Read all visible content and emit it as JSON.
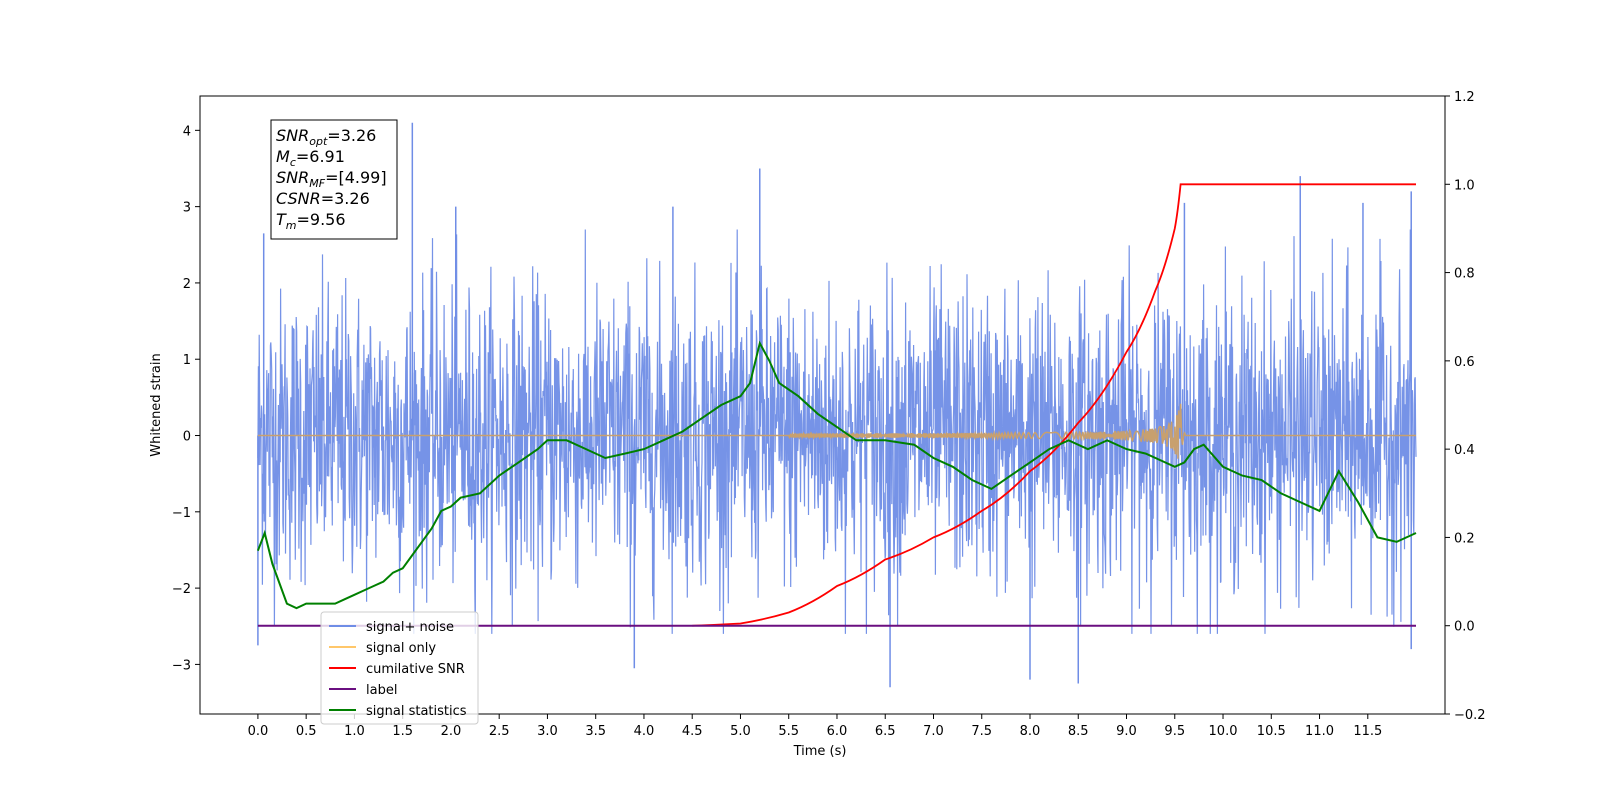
{
  "chart_data": {
    "type": "line",
    "xlabel": "Time (s)",
    "ylabel": "Whitened strain",
    "xlim": [
      -0.6,
      12.3
    ],
    "ylim": [
      -3.65,
      4.45
    ],
    "ylim_right": [
      -0.2,
      1.2
    ],
    "x_ticks": [
      "0.0",
      "0.5",
      "1.0",
      "1.5",
      "2.0",
      "2.5",
      "3.0",
      "3.5",
      "4.0",
      "4.5",
      "5.0",
      "5.5",
      "6.0",
      "6.5",
      "7.0",
      "7.5",
      "8.0",
      "8.5",
      "9.0",
      "9.5",
      "10.0",
      "10.5",
      "11.0",
      "11.5"
    ],
    "y_ticks": [
      "4",
      "3",
      "2",
      "1",
      "0",
      "−1",
      "−2",
      "−3"
    ],
    "y_ticks_right": [
      "1.2",
      "1.0",
      "0.8",
      "0.6",
      "0.4",
      "0.2",
      "0.0",
      "−0.2"
    ],
    "grid": false,
    "legend_position": "lower-left",
    "annotation": [
      {
        "main": "SNR",
        "sub": "opt",
        "value": "=3.26"
      },
      {
        "main": "M",
        "sub": "c",
        "value": "=6.91"
      },
      {
        "main": "SNR",
        "sub": "MF",
        "value": "=[4.99]"
      },
      {
        "main": "CSNR",
        "sub": "",
        "value": "=3.26"
      },
      {
        "main": "T",
        "sub": "m",
        "value": "=9.56"
      }
    ],
    "series": [
      {
        "name": "signal+ noise",
        "color": "#6f8de6",
        "axis": "left",
        "x_range": [
          0.0,
          12.0
        ],
        "envelope_upper_approx": [
          2.1,
          2.6
        ],
        "envelope_lower_approx": [
          -2.3,
          -2.0
        ],
        "peaks": [
          {
            "x": 1.6,
            "y": 4.1
          },
          {
            "x": 0.06,
            "y": 2.65
          },
          {
            "x": 5.2,
            "y": 3.5
          },
          {
            "x": 10.8,
            "y": 3.4
          },
          {
            "x": 11.95,
            "y": 3.2
          },
          {
            "x": 6.55,
            "y": -3.3
          },
          {
            "x": 8.5,
            "y": -3.25
          },
          {
            "x": 3.9,
            "y": -3.05
          },
          {
            "x": 8.0,
            "y": -3.2
          },
          {
            "x": 2.05,
            "y": 3.0
          },
          {
            "x": 4.3,
            "y": 3.0
          },
          {
            "x": 9.6,
            "y": 3.05
          },
          {
            "x": 11.45,
            "y": 3.05
          },
          {
            "x": 0.0,
            "y": -2.75
          },
          {
            "x": 11.95,
            "y": -2.8
          }
        ]
      },
      {
        "name": "signal only",
        "color": "#c8a06e",
        "axis": "left",
        "chirp_start": 5.5,
        "merger_time": 9.56,
        "amplitude_at_merger": 0.42,
        "x_range": [
          0.0,
          12.0
        ]
      },
      {
        "name": "cumilative SNR",
        "color": "#ff0000",
        "axis": "right",
        "x": [
          4.5,
          5.0,
          5.5,
          6.0,
          6.5,
          7.0,
          7.5,
          8.0,
          8.5,
          9.0,
          9.3,
          9.5,
          9.56,
          12.0
        ],
        "values": [
          0.0,
          0.005,
          0.03,
          0.09,
          0.15,
          0.2,
          0.26,
          0.35,
          0.46,
          0.62,
          0.76,
          0.9,
          1.0,
          1.0
        ]
      },
      {
        "name": "label",
        "color": "#6a0f80",
        "axis": "right",
        "x": [
          0.0,
          12.0
        ],
        "values": [
          0.0,
          0.0
        ]
      },
      {
        "name": "signal statistics",
        "color": "#008000",
        "axis": "right",
        "x": [
          0.0,
          0.07,
          0.15,
          0.3,
          0.4,
          0.5,
          0.6,
          0.7,
          0.8,
          0.9,
          1.0,
          1.1,
          1.2,
          1.3,
          1.4,
          1.5,
          1.6,
          1.7,
          1.8,
          1.9,
          2.0,
          2.1,
          2.3,
          2.5,
          2.7,
          2.9,
          3.0,
          3.2,
          3.4,
          3.6,
          3.8,
          4.0,
          4.2,
          4.4,
          4.6,
          4.8,
          5.0,
          5.1,
          5.2,
          5.3,
          5.4,
          5.6,
          5.8,
          6.0,
          6.2,
          6.5,
          6.8,
          7.0,
          7.2,
          7.4,
          7.6,
          7.8,
          8.0,
          8.2,
          8.4,
          8.6,
          8.8,
          9.0,
          9.2,
          9.4,
          9.5,
          9.6,
          9.7,
          9.8,
          10.0,
          10.2,
          10.4,
          10.6,
          10.8,
          11.0,
          11.2,
          11.4,
          11.6,
          11.8,
          12.0
        ],
        "values": [
          0.17,
          0.21,
          0.14,
          0.05,
          0.04,
          0.05,
          0.05,
          0.05,
          0.05,
          0.06,
          0.07,
          0.08,
          0.09,
          0.1,
          0.12,
          0.13,
          0.16,
          0.19,
          0.22,
          0.26,
          0.27,
          0.29,
          0.3,
          0.34,
          0.37,
          0.4,
          0.42,
          0.42,
          0.4,
          0.38,
          0.39,
          0.4,
          0.42,
          0.44,
          0.47,
          0.5,
          0.52,
          0.55,
          0.64,
          0.6,
          0.55,
          0.52,
          0.48,
          0.45,
          0.42,
          0.42,
          0.41,
          0.38,
          0.36,
          0.33,
          0.31,
          0.34,
          0.37,
          0.4,
          0.42,
          0.4,
          0.42,
          0.4,
          0.39,
          0.37,
          0.36,
          0.37,
          0.4,
          0.41,
          0.36,
          0.34,
          0.33,
          0.3,
          0.28,
          0.26,
          0.35,
          0.28,
          0.2,
          0.19,
          0.21
        ]
      }
    ],
    "legend": [
      {
        "label": "signal+ noise",
        "color": "#6f8de6"
      },
      {
        "label": "signal only",
        "color": "#ffc76a"
      },
      {
        "label": "cumilative SNR",
        "color": "#ff0000"
      },
      {
        "label": "label",
        "color": "#6a0f80"
      },
      {
        "label": "signal statistics",
        "color": "#008000"
      }
    ]
  }
}
